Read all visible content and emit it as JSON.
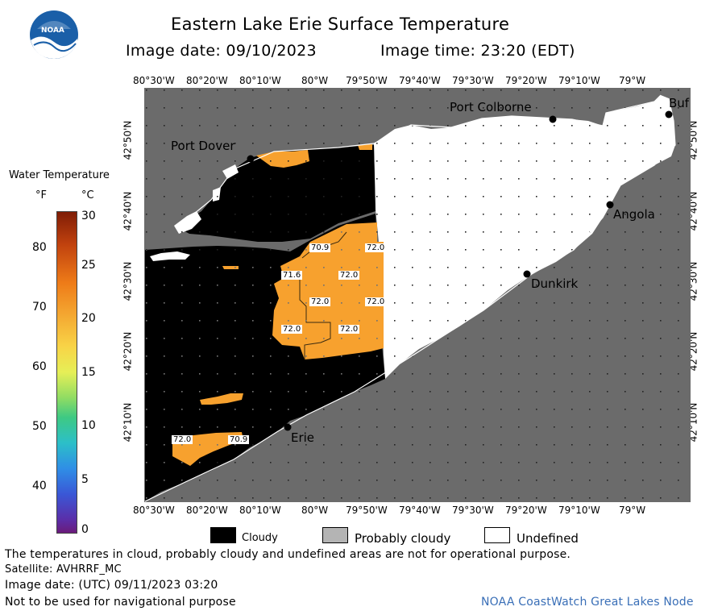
{
  "header": {
    "title": "Eastern Lake Erie Surface Temperature",
    "image_date_label": "Image date: 09/10/2023",
    "image_time_label": "Image time: 23:20 (EDT)",
    "logo_text": "NOAA"
  },
  "axes": {
    "lon_ticks": [
      "80°30'W",
      "80°20'W",
      "80°10'W",
      "80°W",
      "79°50'W",
      "79°40'W",
      "79°30'W",
      "79°20'W",
      "79°10'W",
      "79°W"
    ],
    "lat_ticks": [
      "42°50'N",
      "42°40'N",
      "42°30'N",
      "42°20'N",
      "42°10'N"
    ]
  },
  "places": {
    "port_dover": "Port Dover",
    "port_colborne": "Port Colborne",
    "buffalo": "Buf",
    "angola": "Angola",
    "dunkirk": "Dunkirk",
    "erie": "Erie"
  },
  "temps": {
    "t1": "70.9",
    "t2": "72.0",
    "t3": "71.6",
    "t4": "72.0",
    "t5": "72.0",
    "t6": "72.0",
    "t7": "72.0",
    "t8": "72.0",
    "t9": "72.0",
    "t10": "70.9"
  },
  "legend": {
    "title": "Water Temperature",
    "unit_f": "°F",
    "unit_c": "°C",
    "f_ticks": [
      "80",
      "70",
      "60",
      "50",
      "40"
    ],
    "c_ticks": [
      "30",
      "25",
      "20",
      "15",
      "10",
      "5",
      "0"
    ],
    "cloudy": "Cloudy",
    "probably_cloudy": "Probably cloudy",
    "undefined": "Undefined"
  },
  "footer": {
    "line1": "The temperatures in cloud, probably cloudy and undefined areas are not for operational purpose.",
    "line2": "Satellite: AVHRRF_MC",
    "line3": "Image date: (UTC) 09/11/2023  03:20",
    "line4": "Not to be used for navigational purpose",
    "credit": "NOAA CoastWatch Great Lakes Node"
  },
  "colors": {
    "land": "#6b6b6b",
    "cloud": "#000000",
    "undefined": "#ffffff",
    "water_72": "#f7a12e",
    "probably_cloudy": "#b4b4b4"
  }
}
